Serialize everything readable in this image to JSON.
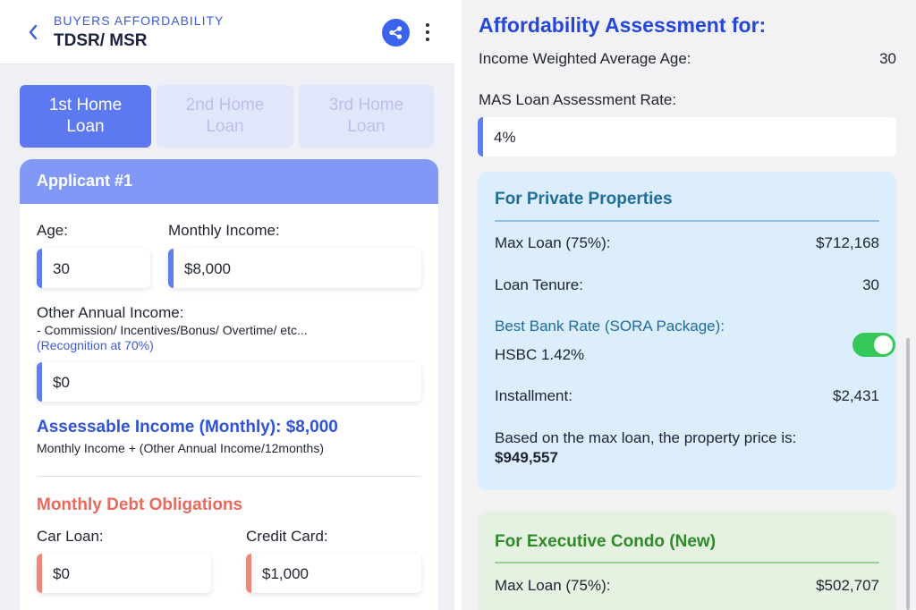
{
  "header": {
    "eyebrow": "BUYERS AFFORDABILITY",
    "title": "TDSR/ MSR",
    "icons": {
      "back": "chevron-left-icon",
      "share": "share-icon",
      "more": "more-vertical-icon"
    }
  },
  "tabs": [
    {
      "line1": "1st Home",
      "line2": "Loan",
      "active": true
    },
    {
      "line1": "2nd Home",
      "line2": "Loan",
      "active": false
    },
    {
      "line1": "3rd Home",
      "line2": "Loan",
      "active": false
    }
  ],
  "applicant": {
    "heading": "Applicant #1",
    "age_label": "Age:",
    "age_value": "30",
    "income_label": "Monthly Income:",
    "income_value": "$8,000",
    "other_label": "Other Annual Income:",
    "other_note": "- Commission/ Incentives/Bonus/ Overtime/ etc...",
    "other_recognition": "(Recognition at 70%)",
    "other_value": "$0",
    "assessable": "Assessable Income (Monthly): $8,000",
    "assessable_formula": "Monthly Income + (Other Annual Income/12months)"
  },
  "debt": {
    "heading": "Monthly Debt Obligations",
    "car_label": "Car Loan:",
    "car_value": "$0",
    "card_label": "Credit Card:",
    "card_value": "$1,000"
  },
  "assessment": {
    "title": "Affordability Assessment for:",
    "age_label": "Income Weighted Average Age:",
    "age_value": "30",
    "rate_label": "MAS Loan Assessment Rate:",
    "rate_value": "4%"
  },
  "private": {
    "title": "For Private Properties",
    "max_loan_label": "Max Loan (75%):",
    "max_loan_value": "$712,168",
    "tenure_label": "Loan Tenure:",
    "tenure_value": "30",
    "best_rate_label": "Best Bank Rate (SORA Package):",
    "best_rate_value": "HSBC 1.42%",
    "toggle_on": true,
    "installment_label": "Installment:",
    "installment_value": "$2,431",
    "price_text": "Based on the max loan, the property price is:",
    "price_value": "$949,557"
  },
  "ec": {
    "title": "For Executive Condo (New)",
    "max_loan_label": "Max Loan (75%):",
    "max_loan_value": "$502,707"
  },
  "colors": {
    "accent_blue": "#3a64ee",
    "tab_active": "#5c79f2",
    "applicant_header": "#8198f6",
    "debt_red": "#e9695c",
    "private_title": "#1f6d9c",
    "ec_title": "#2f8a2a",
    "toggle_green": "#34c759"
  }
}
